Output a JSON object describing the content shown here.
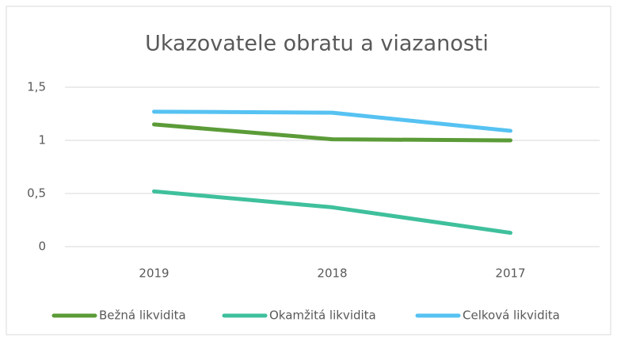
{
  "chart_data": {
    "type": "line",
    "title": "Ukazovatele obratu a viazanosti",
    "categories": [
      "2019",
      "2018",
      "2017"
    ],
    "series": [
      {
        "name": "Bežná likvidita",
        "color": "#5b9b38",
        "values": [
          1.15,
          1.01,
          1.0
        ]
      },
      {
        "name": "Okamžitá likvidita",
        "color": "#3fc09c",
        "values": [
          0.52,
          0.37,
          0.13
        ]
      },
      {
        "name": "Celková likvidita",
        "color": "#56c2f2",
        "values": [
          1.27,
          1.26,
          1.09
        ]
      }
    ],
    "ylim": [
      0,
      1.5
    ],
    "yticks": [
      0,
      {
        "value": 0.5,
        "label": "0,5"
      },
      1,
      {
        "value": 1.5,
        "label": "1,5"
      }
    ],
    "grid": true,
    "legend": "bottom"
  }
}
